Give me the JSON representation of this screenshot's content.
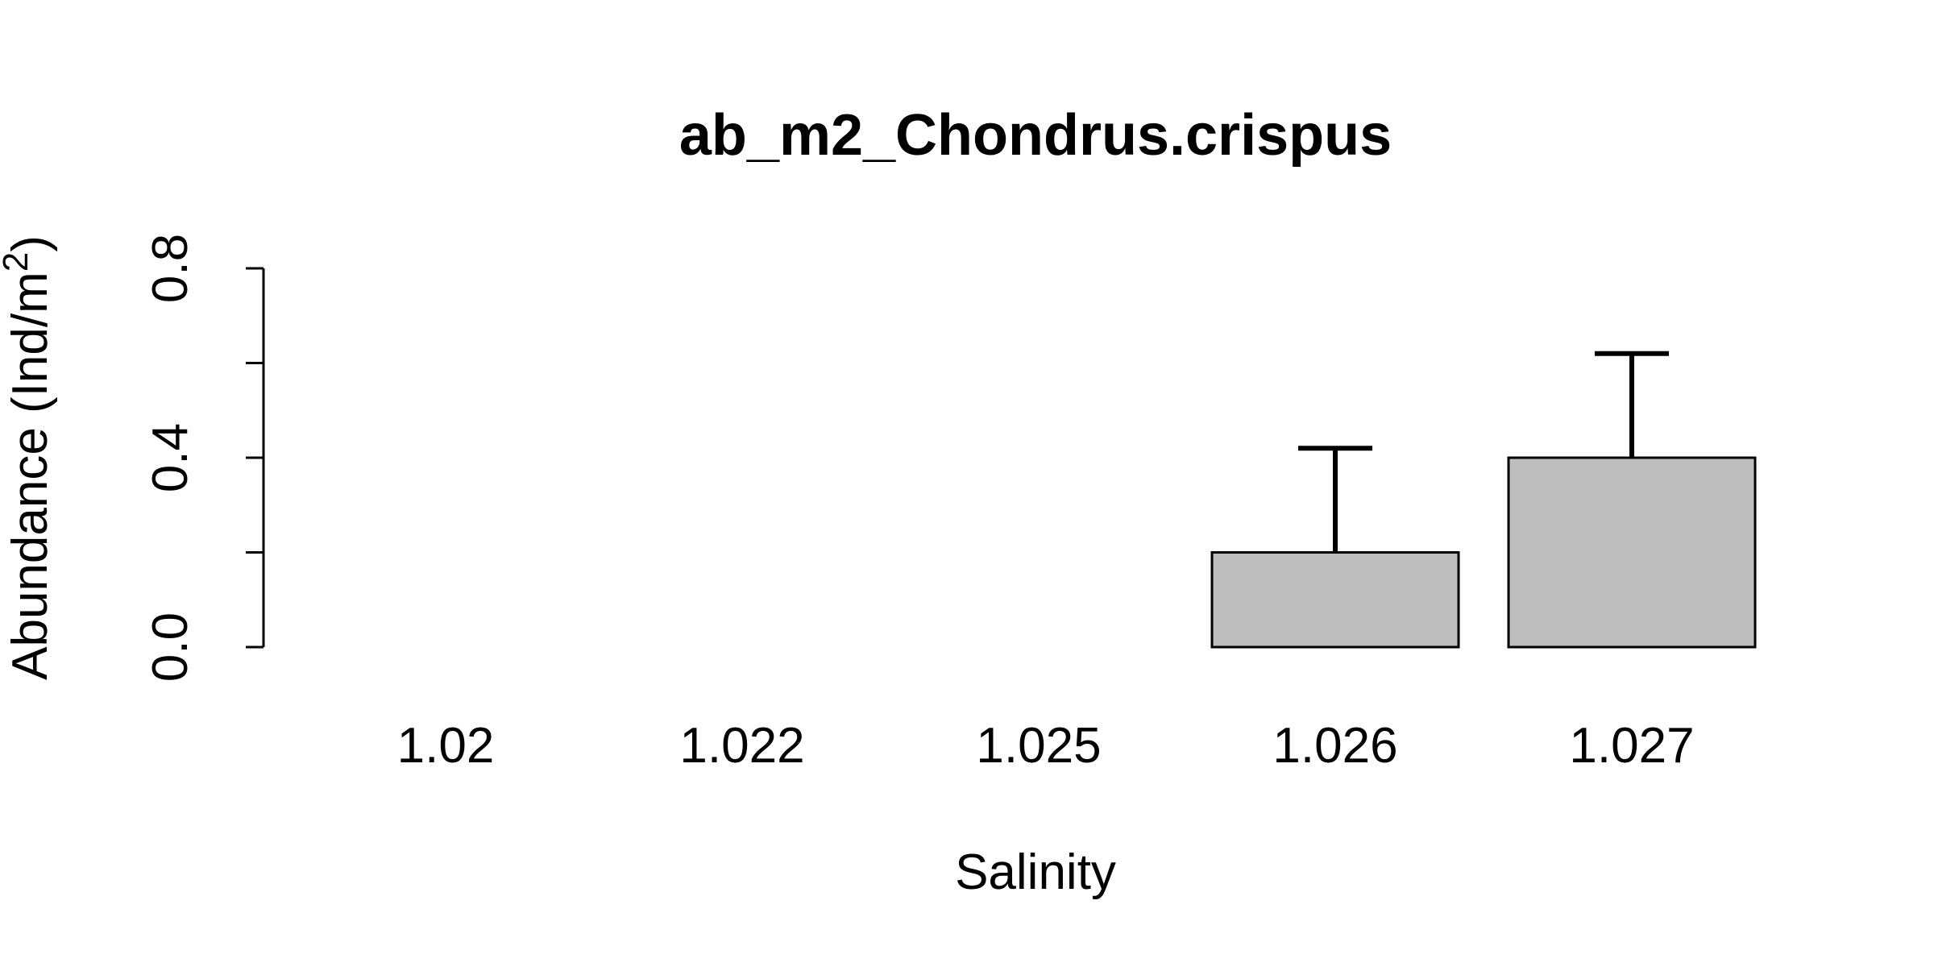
{
  "chart_data": {
    "type": "bar",
    "title": "ab_m2_Chondrus.crispus",
    "xlabel": "Salinity",
    "ylabel_main": "Abundance (Ind/m",
    "ylabel_sup": "2",
    "ylabel_close": ")",
    "categories": [
      "1.02",
      "1.022",
      "1.025",
      "1.026",
      "1.027"
    ],
    "values": [
      0,
      0,
      0,
      0.2,
      0.4
    ],
    "error_upper": [
      0,
      0,
      0,
      0.42,
      0.62
    ],
    "ylim": [
      0,
      0.8
    ],
    "yticks": [
      0,
      0.2,
      0.4,
      0.6,
      0.8
    ],
    "ytick_labels": [
      "0.0",
      "",
      "0.4",
      "",
      "0.8"
    ],
    "bar_color": "#bebebe",
    "outline_color": "#000000",
    "grid": false,
    "legend": "none"
  }
}
